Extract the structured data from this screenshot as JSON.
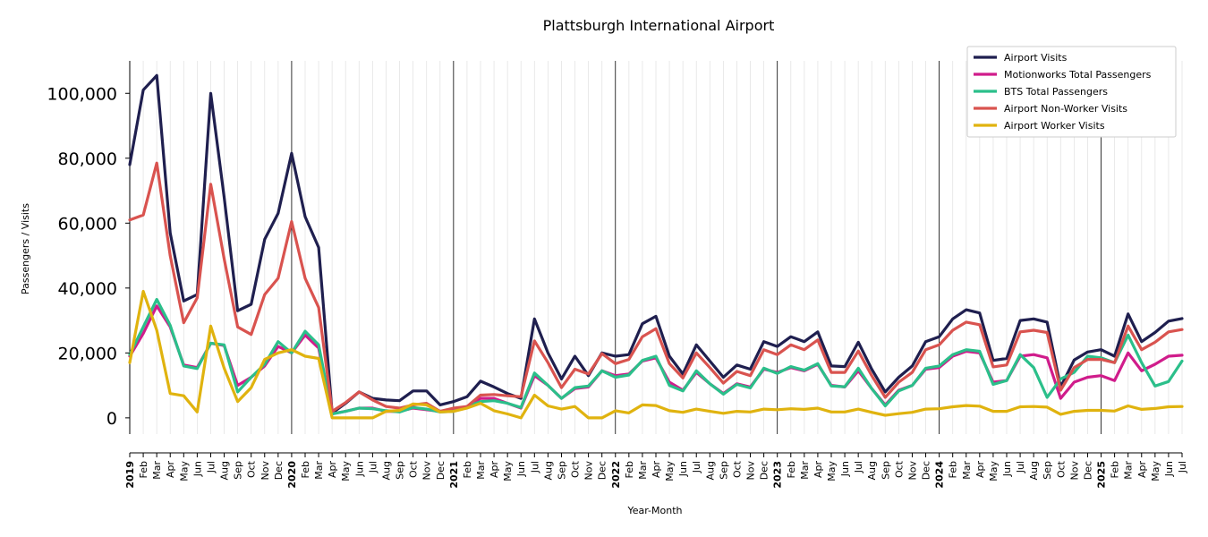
{
  "chart_data": {
    "type": "line",
    "title": "Plattsburgh International Airport",
    "xlabel": "Year-Month",
    "ylabel": "Passengers / Visits",
    "ylim": [
      -5000,
      110000
    ],
    "yticks": [
      0,
      20000,
      40000,
      60000,
      80000,
      100000
    ],
    "ytick_labels": [
      "0",
      "20,000",
      "40,000",
      "60,000",
      "80,000",
      "100,000"
    ],
    "grid": "vertical",
    "legend_position": "top-right",
    "x_labels": [
      "2019",
      "Feb",
      "Mar",
      "Apr",
      "May",
      "Jun",
      "Jul",
      "Aug",
      "Sep",
      "Oct",
      "Nov",
      "Dec",
      "2020",
      "Feb",
      "Mar",
      "Apr",
      "May",
      "Jun",
      "Jul",
      "Aug",
      "Sep",
      "Oct",
      "Nov",
      "Dec",
      "2021",
      "Feb",
      "Mar",
      "Apr",
      "May",
      "Jun",
      "Jul",
      "Aug",
      "Sep",
      "Oct",
      "Nov",
      "Dec",
      "2022",
      "Feb",
      "Mar",
      "Apr",
      "May",
      "Jun",
      "Jul",
      "Aug",
      "Sep",
      "Oct",
      "Nov",
      "Dec",
      "2023",
      "Feb",
      "Mar",
      "Apr",
      "May",
      "Jun",
      "Jul",
      "Aug",
      "Sep",
      "Oct",
      "Nov",
      "Dec",
      "2024",
      "Feb",
      "Mar",
      "Apr",
      "May",
      "Jun",
      "Jul",
      "Aug",
      "Sep",
      "Oct",
      "Nov",
      "Dec",
      "2025",
      "Feb",
      "Mar",
      "Apr",
      "May",
      "Jun",
      "Jul"
    ],
    "year_labels": [
      "2019",
      "2020",
      "2021",
      "2022",
      "2023",
      "2024",
      "2025"
    ],
    "series": [
      {
        "name": "Airport Visits",
        "color": "#1f1f4f",
        "values": [
          78000,
          101000,
          105500,
          57000,
          36000,
          38000,
          100000,
          68000,
          33000,
          35000,
          55000,
          63000,
          81500,
          62000,
          52500,
          1500,
          4500,
          8000,
          6000,
          5500,
          5300,
          8300,
          8300,
          4000,
          5000,
          6500,
          11300,
          9500,
          7500,
          6000,
          30500,
          20000,
          12000,
          19000,
          13000,
          20000,
          19000,
          19500,
          29000,
          31300,
          19000,
          13500,
          22500,
          17500,
          12500,
          16300,
          15000,
          23500,
          22000,
          25000,
          23500,
          26500,
          16000,
          15800,
          23300,
          15000,
          8000,
          12500,
          16000,
          23500,
          25000,
          30500,
          33300,
          32300,
          17700,
          18300,
          30000,
          30500,
          29500,
          9500,
          17800,
          20300,
          21000,
          19000,
          32000,
          23500,
          26300,
          29800,
          30600
        ]
      },
      {
        "name": "Motionworks Total Passengers",
        "color": "#d01c8b",
        "values": [
          19000,
          26000,
          34500,
          28000,
          16300,
          15500,
          23000,
          22300,
          10000,
          12500,
          16000,
          22000,
          20000,
          25500,
          21500,
          1300,
          2000,
          3000,
          3000,
          2000,
          2000,
          3000,
          2500,
          2000,
          2500,
          3500,
          6000,
          6000,
          4500,
          3000,
          13000,
          10000,
          6000,
          9000,
          9500,
          14500,
          13000,
          13500,
          17500,
          18500,
          11000,
          8500,
          14000,
          10500,
          7500,
          10500,
          9500,
          15000,
          14000,
          15500,
          14500,
          16500,
          10000,
          9500,
          14500,
          9000,
          4000,
          8500,
          10000,
          15000,
          15500,
          19000,
          20500,
          20000,
          11000,
          11500,
          19000,
          19500,
          18500,
          6000,
          11000,
          12500,
          13000,
          11500,
          20000,
          14500,
          16500,
          19000,
          19300
        ]
      },
      {
        "name": "BTS Total Passengers",
        "color": "#2bbf8a",
        "values": [
          19500,
          28000,
          36500,
          28500,
          16000,
          15200,
          23000,
          22500,
          8000,
          12500,
          16500,
          23500,
          20000,
          26700,
          22500,
          1200,
          2000,
          3000,
          2800,
          2200,
          1800,
          3200,
          2700,
          1800,
          2000,
          3500,
          5000,
          5300,
          4500,
          3200,
          13800,
          10000,
          6000,
          9300,
          9800,
          14500,
          12500,
          13200,
          17700,
          19000,
          10000,
          8300,
          14500,
          10500,
          7300,
          10300,
          9200,
          15300,
          13700,
          15800,
          14700,
          16700,
          9800,
          9600,
          15300,
          9000,
          3700,
          8300,
          10000,
          15300,
          16000,
          19500,
          21000,
          20500,
          10300,
          11500,
          19500,
          15500,
          6300,
          12000,
          14000,
          19000,
          18500,
          17000,
          25500,
          17000,
          9800,
          11200,
          17500
        ]
      },
      {
        "name": "Airport Non-Worker Visits",
        "color": "#d9534f",
        "values": [
          61000,
          62500,
          78500,
          50000,
          29300,
          37000,
          72000,
          49000,
          28000,
          25700,
          38000,
          43000,
          60500,
          43000,
          34000,
          2000,
          4700,
          8000,
          5500,
          3500,
          3000,
          4000,
          4500,
          2000,
          3000,
          3500,
          7000,
          7200,
          6800,
          6500,
          23700,
          17000,
          9300,
          15000,
          13500,
          19800,
          16700,
          18000,
          25000,
          27500,
          16700,
          12300,
          20000,
          15500,
          10700,
          14300,
          13000,
          21000,
          19500,
          22500,
          21000,
          24000,
          14000,
          14000,
          20600,
          13000,
          6300,
          11000,
          14000,
          21000,
          22500,
          27000,
          29500,
          28700,
          15700,
          16300,
          26500,
          27000,
          26300,
          8500,
          15500,
          18000,
          18000,
          17000,
          28300,
          21000,
          23300,
          26500,
          27200
        ]
      },
      {
        "name": "Airport Worker Visits",
        "color": "#e0b30f",
        "values": [
          17000,
          39000,
          27000,
          7500,
          6800,
          1800,
          28300,
          15300,
          5000,
          9300,
          18000,
          20000,
          21000,
          19000,
          18300,
          0,
          0,
          0,
          0,
          2000,
          2300,
          4300,
          4000,
          1800,
          2000,
          3000,
          4500,
          2200,
          1200,
          0,
          7000,
          3700,
          2700,
          3500,
          0,
          0,
          2200,
          1500,
          4000,
          3800,
          2200,
          1700,
          2700,
          2000,
          1400,
          2000,
          1800,
          2700,
          2500,
          2800,
          2600,
          3000,
          1800,
          1800,
          2700,
          1700,
          800,
          1300,
          1700,
          2700,
          2800,
          3400,
          3800,
          3600,
          2000,
          2000,
          3400,
          3500,
          3300,
          1100,
          2000,
          2300,
          2300,
          2100,
          3700,
          2600,
          2900,
          3400,
          3500
        ]
      }
    ]
  }
}
